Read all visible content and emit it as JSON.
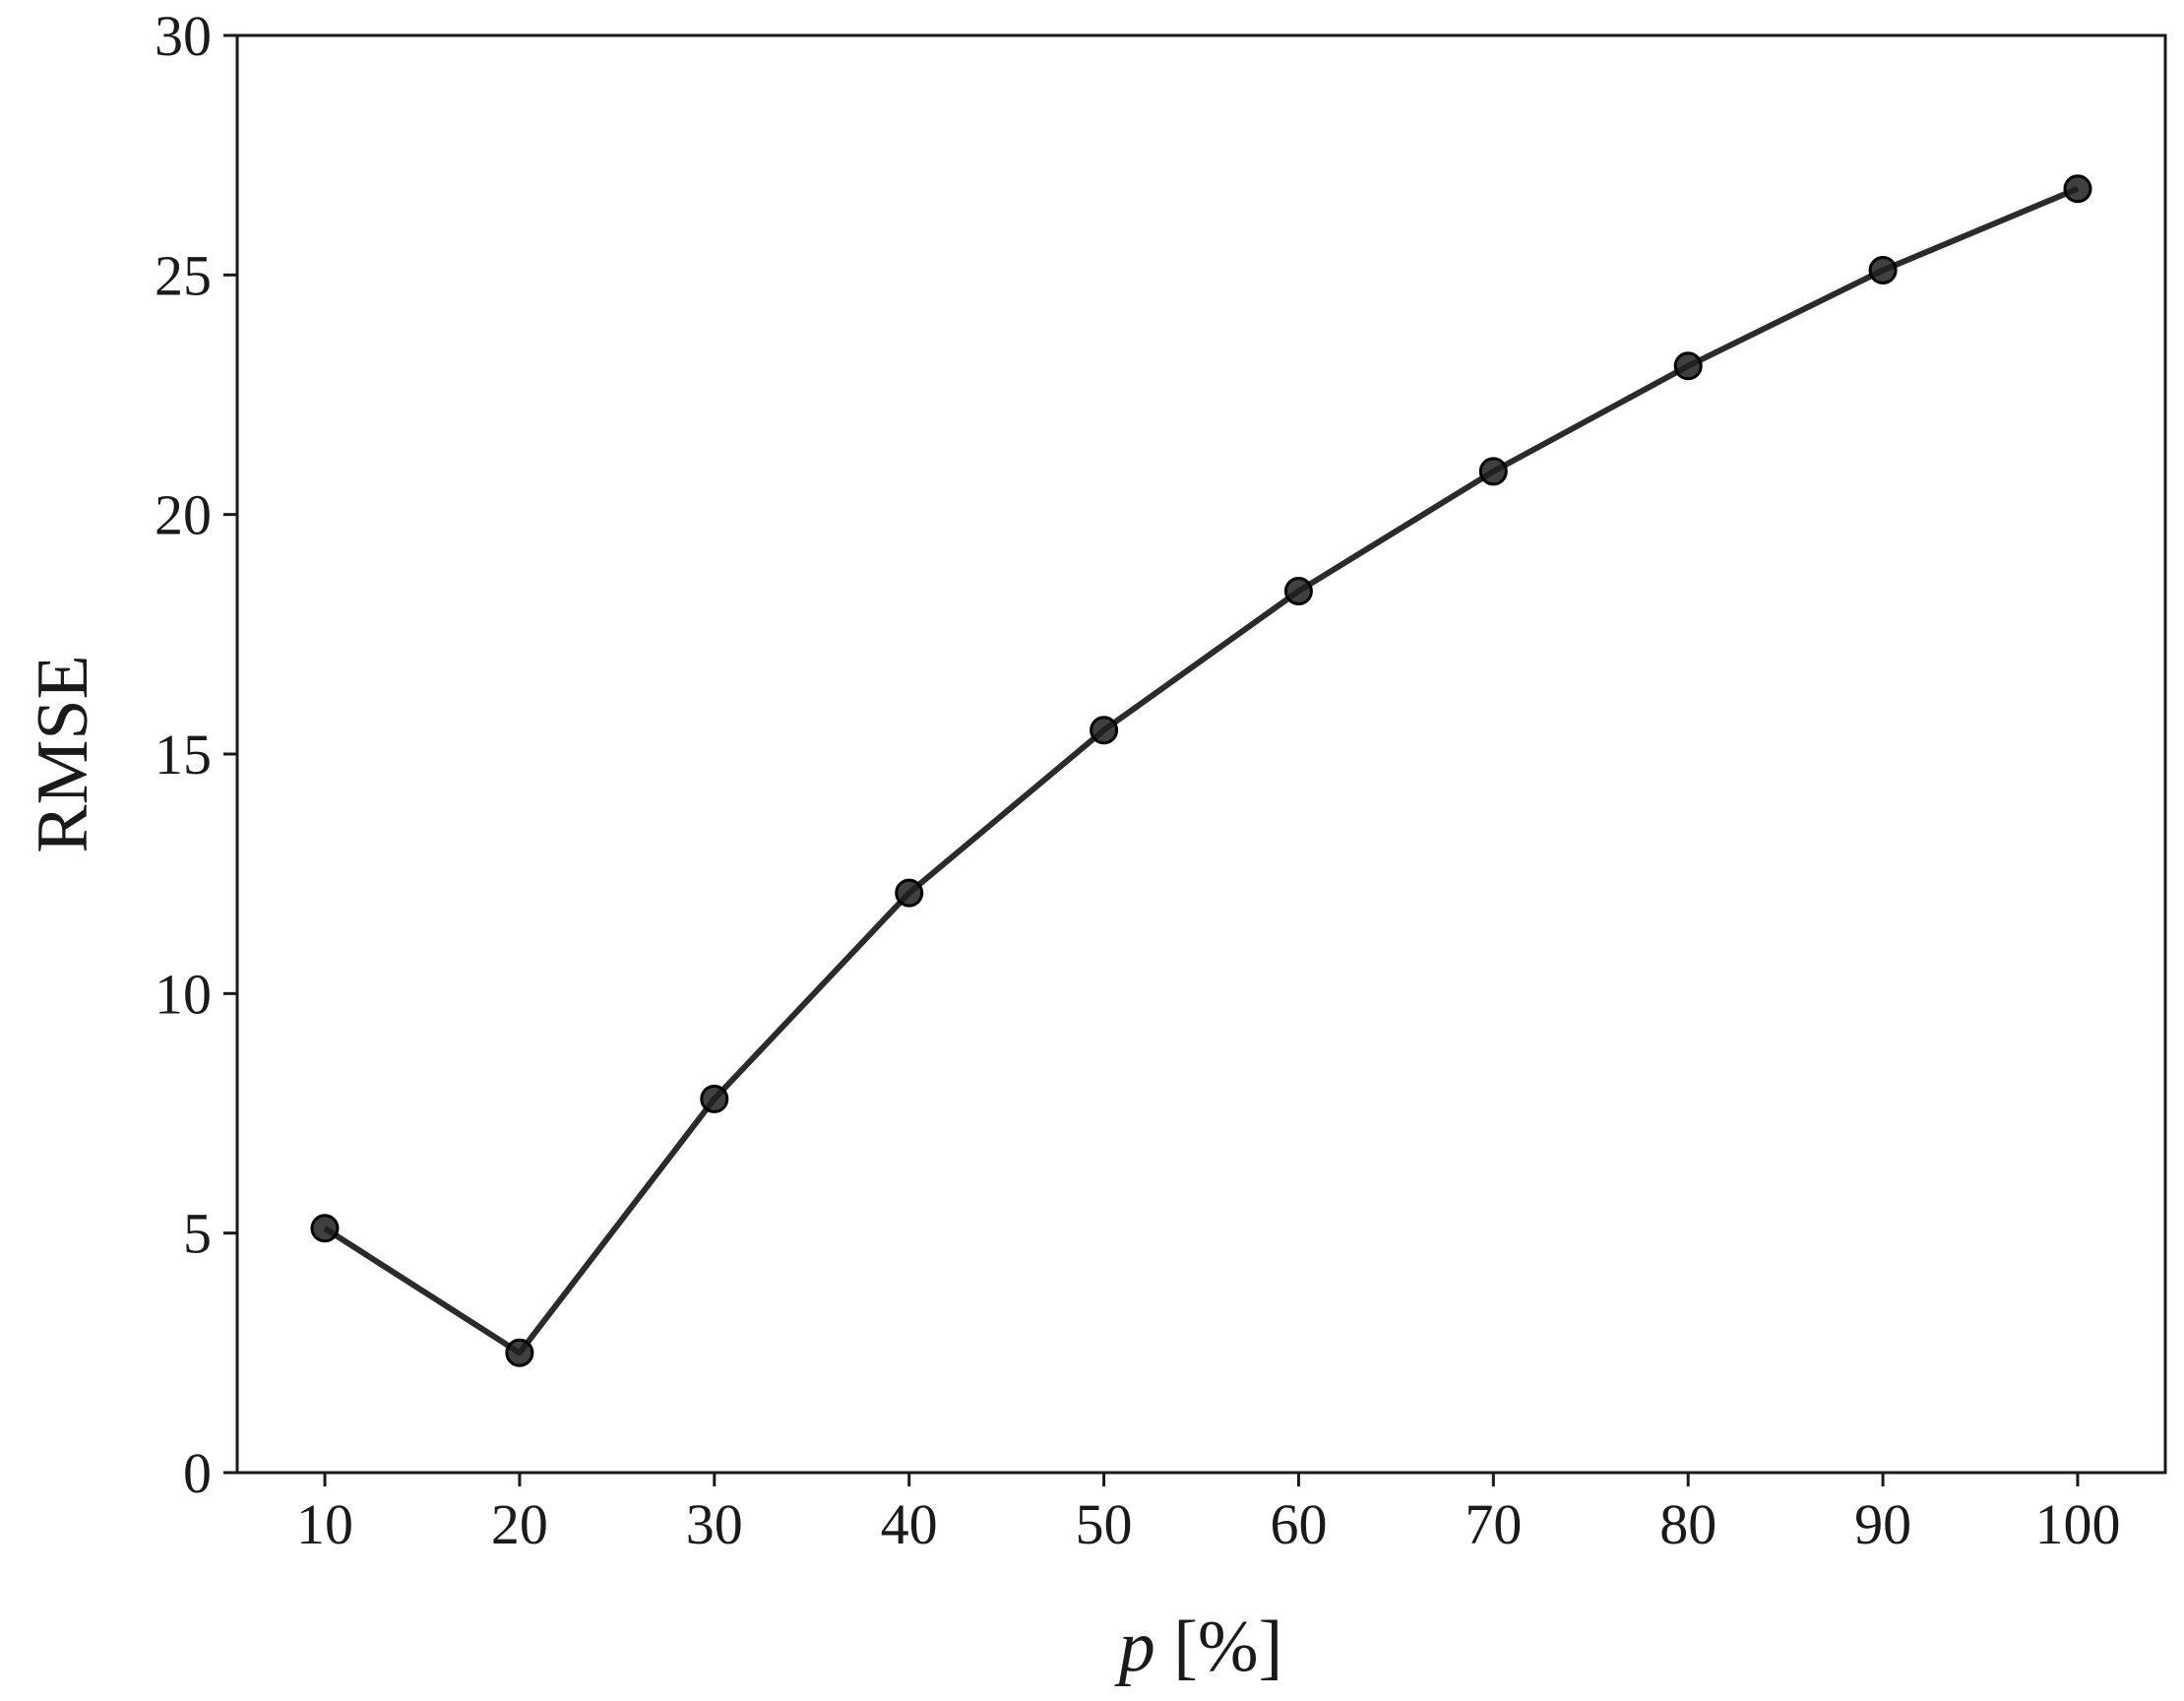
{
  "chart_data": {
    "type": "line",
    "title": "",
    "xlabel_italic": "p",
    "xlabel_rest": " [%]",
    "ylabel": "RMSE",
    "x": [
      10,
      20,
      30,
      40,
      50,
      60,
      70,
      80,
      90,
      100
    ],
    "series": [
      {
        "values": [
          5.1,
          2.5,
          7.8,
          12.1,
          15.5,
          18.4,
          20.9,
          23.1,
          25.1,
          26.8
        ],
        "color": "#2b2b2b",
        "marker": "circle"
      }
    ],
    "xlim": [
      5.5,
      104.5
    ],
    "ylim": [
      0,
      30
    ],
    "xticks": [
      "10",
      "20",
      "30",
      "40",
      "50",
      "60",
      "70",
      "80",
      "90",
      "100"
    ],
    "yticks": [
      "0",
      "5",
      "10",
      "15",
      "20",
      "25",
      "30"
    ],
    "grid": false,
    "legend": "none"
  }
}
